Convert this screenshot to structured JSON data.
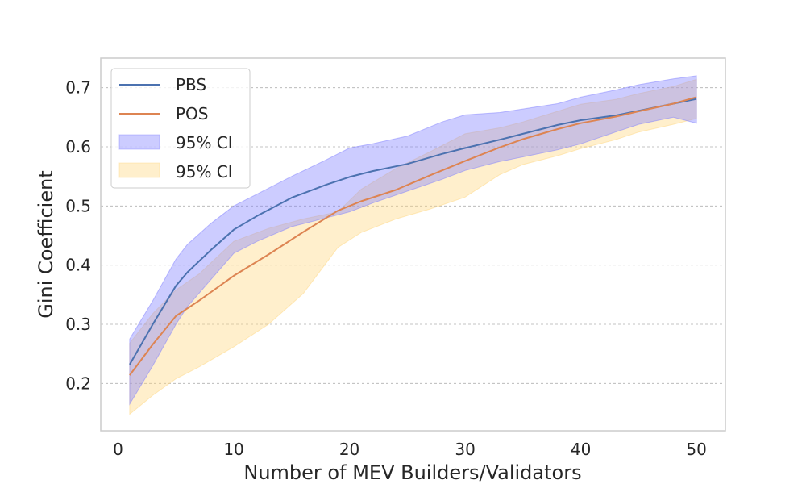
{
  "chart_data": {
    "type": "line",
    "title": "",
    "xlabel": "Number of MEV Builders/Validators",
    "ylabel": "Gini Coefficient",
    "xlim": [
      -1.5,
      52.5
    ],
    "ylim": [
      0.12,
      0.75
    ],
    "xticks": [
      0,
      10,
      20,
      30,
      40,
      50
    ],
    "xtick_labels": [
      "0",
      "10",
      "20",
      "30",
      "40",
      "50"
    ],
    "yticks": [
      0.2,
      0.3,
      0.4,
      0.5,
      0.6,
      0.7
    ],
    "ytick_labels": [
      "0.2",
      "0.3",
      "0.4",
      "0.5",
      "0.6",
      "0.7"
    ],
    "grid": "horizontal dashed",
    "legend_position": "top-left",
    "legend": [
      {
        "label": "PBS",
        "kind": "line",
        "color": "#4c72b0"
      },
      {
        "label": "POS",
        "kind": "line",
        "color": "#dd8452"
      },
      {
        "label": "95% CI",
        "kind": "band",
        "color": "#8080ff"
      },
      {
        "label": "95% CI",
        "kind": "band",
        "color": "#ffd880"
      }
    ],
    "series": [
      {
        "name": "PBS",
        "color": "#4c72b0",
        "x": [
          1,
          3,
          5,
          6,
          8,
          10,
          12,
          15,
          18,
          20,
          22,
          25,
          28,
          30,
          33,
          35,
          38,
          40,
          43,
          45,
          48,
          50
        ],
        "y": [
          0.232,
          0.3,
          0.365,
          0.388,
          0.425,
          0.46,
          0.483,
          0.514,
          0.536,
          0.549,
          0.559,
          0.571,
          0.588,
          0.598,
          0.612,
          0.622,
          0.637,
          0.645,
          0.653,
          0.661,
          0.673,
          0.681
        ],
        "ci_lower": [
          0.165,
          0.23,
          0.3,
          0.33,
          0.375,
          0.42,
          0.44,
          0.465,
          0.48,
          0.49,
          0.505,
          0.525,
          0.545,
          0.56,
          0.575,
          0.583,
          0.595,
          0.605,
          0.625,
          0.638,
          0.65,
          0.64
        ],
        "ci_upper": [
          0.275,
          0.34,
          0.41,
          0.435,
          0.47,
          0.5,
          0.52,
          0.55,
          0.578,
          0.598,
          0.605,
          0.618,
          0.642,
          0.654,
          0.658,
          0.664,
          0.673,
          0.684,
          0.696,
          0.705,
          0.715,
          0.72
        ]
      },
      {
        "name": "POS",
        "color": "#dd8452",
        "x": [
          1,
          3,
          5,
          7,
          10,
          13,
          16,
          19,
          21,
          24,
          27,
          30,
          33,
          35,
          38,
          40,
          43,
          45,
          48,
          50
        ],
        "y": [
          0.214,
          0.266,
          0.314,
          0.34,
          0.382,
          0.418,
          0.456,
          0.492,
          0.508,
          0.527,
          0.552,
          0.576,
          0.599,
          0.613,
          0.63,
          0.64,
          0.651,
          0.66,
          0.673,
          0.684
        ],
        "ci_lower": [
          0.148,
          0.18,
          0.208,
          0.228,
          0.262,
          0.3,
          0.352,
          0.43,
          0.455,
          0.478,
          0.495,
          0.515,
          0.553,
          0.57,
          0.585,
          0.597,
          0.612,
          0.625,
          0.638,
          0.648
        ],
        "ci_upper": [
          0.268,
          0.318,
          0.358,
          0.385,
          0.44,
          0.462,
          0.478,
          0.49,
          0.528,
          0.563,
          0.592,
          0.622,
          0.632,
          0.642,
          0.66,
          0.672,
          0.68,
          0.69,
          0.702,
          0.714
        ]
      }
    ]
  }
}
